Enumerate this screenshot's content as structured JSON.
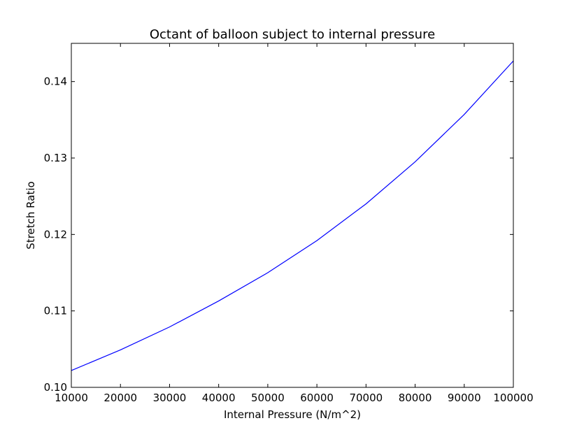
{
  "chart_data": {
    "type": "line",
    "title": "Octant of balloon subject to internal pressure",
    "xlabel": "Internal Pressure (N/m^2)",
    "ylabel": "Stretch Ratio",
    "xlim": [
      10000,
      100000
    ],
    "ylim": [
      0.1,
      0.145
    ],
    "x_ticks": [
      10000,
      20000,
      30000,
      40000,
      50000,
      60000,
      70000,
      80000,
      90000,
      100000
    ],
    "x_tick_labels": [
      "10000",
      "20000",
      "30000",
      "40000",
      "50000",
      "60000",
      "70000",
      "80000",
      "90000",
      "100000"
    ],
    "y_ticks": [
      0.1,
      0.11,
      0.12,
      0.13,
      0.14
    ],
    "y_tick_labels": [
      "0.10",
      "0.11",
      "0.12",
      "0.13",
      "0.14"
    ],
    "grid": false,
    "series": [
      {
        "color": "#0000ff",
        "x": [
          10000,
          20000,
          30000,
          40000,
          50000,
          60000,
          70000,
          80000,
          90000,
          100000
        ],
        "y": [
          0.1022,
          0.1049,
          0.1079,
          0.1113,
          0.115,
          0.1192,
          0.124,
          0.1295,
          0.1357,
          0.1427
        ]
      }
    ]
  }
}
